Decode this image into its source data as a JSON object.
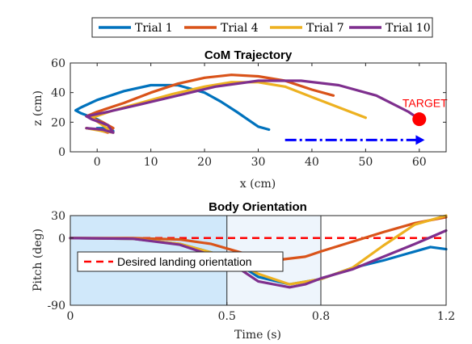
{
  "legend": {
    "entries": [
      {
        "label": "Trial 1",
        "color": "#0072BD"
      },
      {
        "label": "Trial 4",
        "color": "#D95319"
      },
      {
        "label": "Trial 7",
        "color": "#EDB120"
      },
      {
        "label": "Trial 10",
        "color": "#7E2F8E"
      }
    ]
  },
  "chart_data": [
    {
      "type": "line",
      "title": "CoM Trajectory",
      "xlabel": "x (cm)",
      "ylabel": "z (cm)",
      "xlim": [
        -5,
        65
      ],
      "ylim": [
        0,
        60
      ],
      "xticks": [
        "0",
        "10",
        "20",
        "30",
        "40",
        "50",
        "60"
      ],
      "yticks": [
        "0",
        "20",
        "40",
        "60"
      ],
      "series": [
        {
          "name": "Trial 1",
          "color": "#0072BD",
          "x": [
            0,
            2,
            3,
            2,
            0,
            -3,
            -4,
            -3,
            0,
            5,
            10,
            15,
            20,
            23,
            26,
            28,
            30,
            32
          ],
          "z": [
            16,
            16,
            14,
            18,
            22,
            26,
            28,
            30,
            35,
            41,
            45,
            45,
            40,
            34,
            27,
            22,
            17,
            15
          ]
        },
        {
          "name": "Trial 4",
          "color": "#D95319",
          "x": [
            -2,
            0,
            2,
            3,
            1,
            -2,
            0,
            5,
            10,
            15,
            20,
            25,
            30,
            35,
            40,
            44
          ],
          "z": [
            16,
            15,
            13,
            16,
            20,
            24,
            27,
            33,
            40,
            46,
            50,
            52,
            51,
            48,
            42,
            38
          ]
        },
        {
          "name": "Trial 7",
          "color": "#EDB120",
          "x": [
            -2,
            1,
            3,
            1,
            -1,
            3,
            8,
            14,
            20,
            25,
            30,
            35,
            40,
            45,
            50
          ],
          "z": [
            16,
            14,
            13,
            18,
            23,
            28,
            33,
            39,
            44,
            47,
            47,
            44,
            37,
            30,
            23
          ]
        },
        {
          "name": "Trial 10",
          "color": "#7E2F8E",
          "x": [
            -2,
            1,
            3,
            2,
            -1,
            -2,
            2,
            8,
            15,
            22,
            30,
            38,
            45,
            52,
            58,
            60
          ],
          "z": [
            16,
            15,
            13,
            18,
            22,
            24,
            27,
            32,
            38,
            44,
            48,
            48,
            45,
            38,
            27,
            22
          ]
        }
      ],
      "target": {
        "label": "TARGET",
        "x": 60,
        "z": 22,
        "color": "#FF0000"
      },
      "arrow": {
        "x_start": 35,
        "x_end": 61,
        "z": 8,
        "color": "#0000FF"
      }
    },
    {
      "type": "line",
      "title": "Body Orientation",
      "xlabel": "Time (s)",
      "ylabel": "Pitch (deg)",
      "xlim": [
        0,
        1.2
      ],
      "ylim": [
        -90,
        30
      ],
      "xticks": [
        "0",
        "0.5",
        "0.8",
        "1.2"
      ],
      "yticks": [
        "30",
        "0",
        "-90"
      ],
      "shaded_regions": [
        {
          "x_start": 0,
          "x_end": 0.5,
          "color": "#D0E8FA"
        },
        {
          "x_start": 0.5,
          "x_end": 0.8,
          "color": "#EEF5FC"
        }
      ],
      "desired_line": {
        "label": "Desired landing orientation",
        "value": 0,
        "color": "#FF0000"
      },
      "series": [
        {
          "name": "Trial 1",
          "color": "#0072BD",
          "t": [
            0,
            0.2,
            0.35,
            0.5,
            0.6,
            0.7,
            0.8,
            0.9,
            1.0,
            1.1,
            1.15,
            1.2
          ],
          "pitch": [
            0,
            -1,
            -8,
            -25,
            -52,
            -62,
            -55,
            -40,
            -30,
            -18,
            -12,
            -15
          ]
        },
        {
          "name": "Trial 4",
          "color": "#D95319",
          "t": [
            0,
            0.2,
            0.35,
            0.45,
            0.55,
            0.65,
            0.75,
            0.8,
            0.9,
            1.0,
            1.1,
            1.2
          ],
          "pitch": [
            0,
            0,
            -2,
            -8,
            -20,
            -30,
            -25,
            -18,
            -5,
            8,
            20,
            28
          ]
        },
        {
          "name": "Trial 7",
          "color": "#EDB120",
          "t": [
            0,
            0.2,
            0.35,
            0.5,
            0.6,
            0.7,
            0.8,
            0.9,
            1.0,
            1.1,
            1.2
          ],
          "pitch": [
            0,
            -1,
            -8,
            -25,
            -48,
            -62,
            -55,
            -40,
            -10,
            18,
            30
          ]
        },
        {
          "name": "Trial 10",
          "color": "#7E2F8E",
          "t": [
            0,
            0.2,
            0.35,
            0.5,
            0.6,
            0.7,
            0.75,
            0.8,
            0.9,
            1.0,
            1.1,
            1.2
          ],
          "pitch": [
            0,
            -1,
            -9,
            -30,
            -58,
            -66,
            -62,
            -54,
            -42,
            -25,
            -8,
            10
          ]
        }
      ]
    }
  ]
}
